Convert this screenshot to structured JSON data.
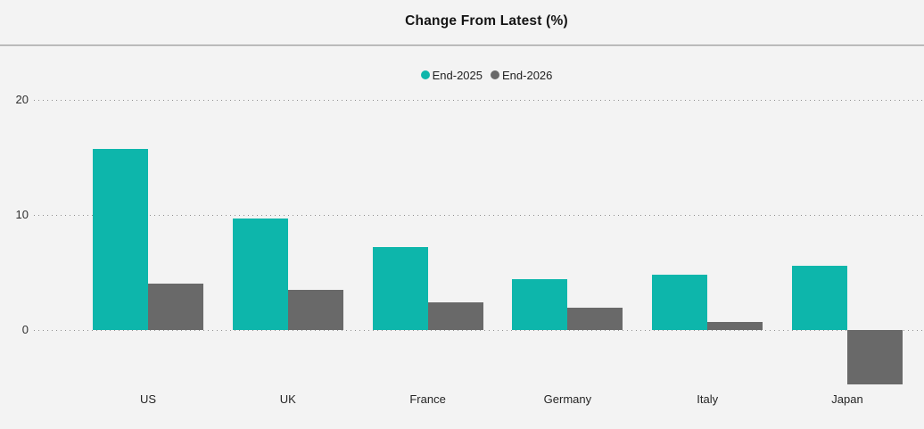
{
  "title": "Change From Latest (%)",
  "legend": [
    {
      "label": "End-2025",
      "color": "#0DB6AB"
    },
    {
      "label": "End-2026",
      "color": "#696969"
    }
  ],
  "y_axis": {
    "tick_labels": [
      "0",
      "10",
      "20"
    ]
  },
  "chart_data": {
    "type": "bar",
    "title": "Change From Latest (%)",
    "categories": [
      "US",
      "UK",
      "France",
      "Germany",
      "Italy",
      "Japan"
    ],
    "series": [
      {
        "name": "End-2025",
        "color": "#0DB6AB",
        "values": [
          15.7,
          9.7,
          7.2,
          4.4,
          4.8,
          5.6
        ]
      },
      {
        "name": "End-2026",
        "color": "#696969",
        "values": [
          4.0,
          3.5,
          2.4,
          1.9,
          0.7,
          -4.7
        ]
      }
    ],
    "xlabel": "",
    "ylabel": "",
    "y_ticks": [
      0,
      10,
      20
    ],
    "ylim": [
      -5.5,
      21.5
    ],
    "grid": "dotted-horizontal",
    "legend_position": "top-center",
    "colors": {
      "background": "#F3F3F3",
      "gridline": "#8F8F8F",
      "series_1": "#0DB6AB",
      "series_2": "#696969"
    }
  }
}
